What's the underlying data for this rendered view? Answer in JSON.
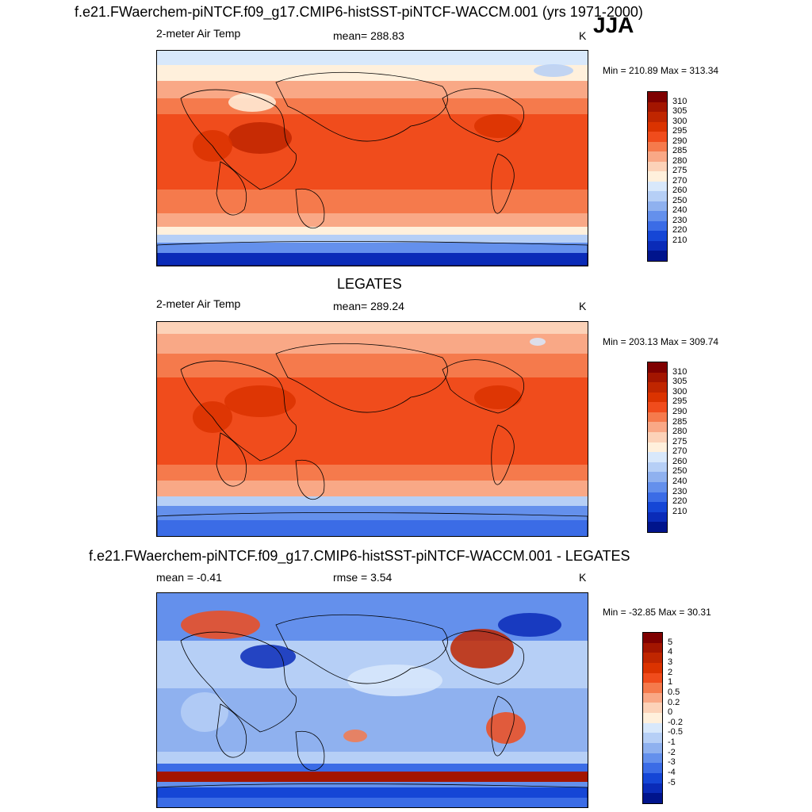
{
  "season": "JJA",
  "panels": [
    {
      "title": "f.e21.FWaerchem-piNTCF.f09_g17.CMIP6-histSST-piNTCF-WACCM.001 (yrs 1971-2000)",
      "variable": "2-meter Air Temp",
      "stat_text": "mean= 288.83",
      "units": "K",
      "minmax": "Min = 210.89 Max = 313.34",
      "colorbar": {
        "labels": [
          "310",
          "305",
          "300",
          "295",
          "290",
          "285",
          "280",
          "275",
          "270",
          "260",
          "250",
          "240",
          "230",
          "220",
          "210"
        ],
        "colors": [
          "#7f0000",
          "#a31500",
          "#c02600",
          "#db3300",
          "#f04c1c",
          "#f57a4c",
          "#f9a886",
          "#fcd2b8",
          "#fff0dc",
          "#d8e8fb",
          "#b6cff6",
          "#8fb1ef",
          "#6490ec",
          "#3b6ce6",
          "#1546d6",
          "#0a2bb8",
          "#00148c"
        ]
      },
      "chart_data": {
        "type": "heatmap",
        "description": "Global map of JJA 2-meter air temperature (model)",
        "mean": 288.83,
        "min": 210.89,
        "max": 313.34,
        "levels": [
          210,
          220,
          230,
          240,
          250,
          260,
          270,
          275,
          280,
          285,
          290,
          295,
          300,
          305,
          310
        ]
      }
    },
    {
      "title": "LEGATES",
      "variable": "2-meter Air Temp",
      "stat_text": "mean= 289.24",
      "units": "K",
      "minmax": "Min = 203.13 Max = 309.74",
      "colorbar": {
        "labels": [
          "310",
          "305",
          "300",
          "295",
          "290",
          "285",
          "280",
          "275",
          "270",
          "260",
          "250",
          "240",
          "230",
          "220",
          "210"
        ],
        "colors": [
          "#7f0000",
          "#a31500",
          "#c02600",
          "#db3300",
          "#f04c1c",
          "#f57a4c",
          "#f9a886",
          "#fcd2b8",
          "#fff0dc",
          "#d8e8fb",
          "#b6cff6",
          "#8fb1ef",
          "#6490ec",
          "#3b6ce6",
          "#1546d6",
          "#0a2bb8",
          "#00148c"
        ]
      },
      "chart_data": {
        "type": "heatmap",
        "description": "Global map of JJA 2-meter air temperature (LEGATES observations)",
        "mean": 289.24,
        "min": 203.13,
        "max": 309.74,
        "levels": [
          210,
          220,
          230,
          240,
          250,
          260,
          270,
          275,
          280,
          285,
          290,
          295,
          300,
          305,
          310
        ]
      }
    },
    {
      "title": "f.e21.FWaerchem-piNTCF.f09_g17.CMIP6-histSST-piNTCF-WACCM.001 - LEGATES",
      "variable": "mean =  -0.41",
      "stat_text": "rmse =   3.54",
      "units": "K",
      "minmax": "Min = -32.85 Max =  30.31",
      "colorbar": {
        "labels": [
          "5",
          "4",
          "3",
          "2",
          "1",
          "0.5",
          "0.2",
          "0",
          "-0.2",
          "-0.5",
          "-1",
          "-2",
          "-3",
          "-4",
          "-5"
        ],
        "colors": [
          "#7f0000",
          "#a31500",
          "#c02600",
          "#db3300",
          "#f04c1c",
          "#f57a4c",
          "#f9a886",
          "#fcd2b8",
          "#fff0dc",
          "#d8e8fb",
          "#b6cff6",
          "#8fb1ef",
          "#6490ec",
          "#3b6ce6",
          "#1546d6",
          "#0a2bb8",
          "#00148c"
        ]
      },
      "chart_data": {
        "type": "heatmap",
        "description": "Difference map model minus LEGATES, JJA 2-meter air temperature",
        "mean": -0.41,
        "rmse": 3.54,
        "min": -32.85,
        "max": 30.31,
        "levels": [
          -5,
          -4,
          -3,
          -2,
          -1,
          -0.5,
          -0.2,
          0,
          0.2,
          0.5,
          1,
          2,
          3,
          4,
          5
        ]
      }
    }
  ]
}
